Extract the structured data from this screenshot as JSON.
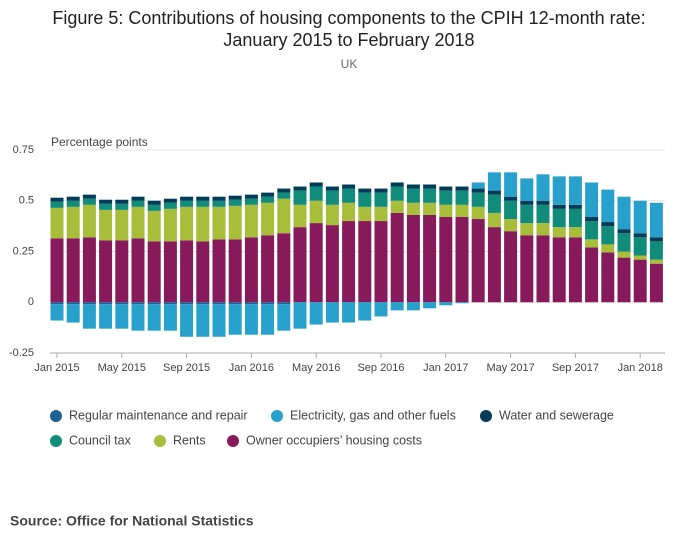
{
  "chart_data": {
    "type": "stacked_bar",
    "title": "Figure 5: Contributions of housing components to the CPIH 12-month rate:",
    "title_line2": "January 2015 to February 2018",
    "subtitle": "UK",
    "y_label": "Percentage points",
    "source": "Source: Office for National Statistics",
    "categories": [
      "Jan 2015",
      null,
      null,
      null,
      "May 2015",
      null,
      null,
      null,
      "Sep 2015",
      null,
      null,
      null,
      "Jan 2016",
      null,
      null,
      null,
      "May 2016",
      null,
      null,
      null,
      "Sep 2016",
      null,
      null,
      null,
      "Jan 2017",
      null,
      null,
      null,
      "May 2017",
      null,
      null,
      null,
      "Sep 2017",
      null,
      null,
      null,
      "Jan 2018",
      null
    ],
    "ylim": [
      -0.25,
      0.75
    ],
    "yticks": [
      -0.25,
      0,
      0.25,
      0.5,
      0.75
    ],
    "grid": true,
    "series": [
      {
        "name": "Owner occupiers’ housing costs",
        "color": "#871a5b",
        "values": [
          0.315,
          0.315,
          0.32,
          0.305,
          0.305,
          0.315,
          0.3,
          0.3,
          0.305,
          0.3,
          0.31,
          0.31,
          0.32,
          0.33,
          0.34,
          0.37,
          0.39,
          0.38,
          0.4,
          0.4,
          0.4,
          0.44,
          0.43,
          0.43,
          0.42,
          0.42,
          0.41,
          0.37,
          0.35,
          0.33,
          0.33,
          0.32,
          0.32,
          0.27,
          0.245,
          0.22,
          0.21,
          0.19
        ]
      },
      {
        "name": "Rents",
        "color": "#a8bd3a",
        "values": [
          0.15,
          0.155,
          0.16,
          0.15,
          0.15,
          0.155,
          0.15,
          0.16,
          0.165,
          0.17,
          0.16,
          0.165,
          0.16,
          0.16,
          0.17,
          0.11,
          0.11,
          0.1,
          0.09,
          0.07,
          0.07,
          0.06,
          0.06,
          0.06,
          0.06,
          0.06,
          0.06,
          0.07,
          0.06,
          0.06,
          0.06,
          0.05,
          0.05,
          0.04,
          0.04,
          0.03,
          0.02,
          0.02
        ]
      },
      {
        "name": "Council tax",
        "color": "#118c7b",
        "values": [
          0.03,
          0.03,
          0.03,
          0.03,
          0.03,
          0.03,
          0.03,
          0.03,
          0.03,
          0.03,
          0.03,
          0.03,
          0.03,
          0.03,
          0.03,
          0.07,
          0.07,
          0.07,
          0.07,
          0.07,
          0.07,
          0.07,
          0.07,
          0.07,
          0.07,
          0.07,
          0.07,
          0.09,
          0.09,
          0.09,
          0.09,
          0.09,
          0.09,
          0.09,
          0.09,
          0.09,
          0.09,
          0.09
        ]
      },
      {
        "name": "Regular maintenance and repair",
        "color": "#206095",
        "values": [
          -0.01,
          -0.01,
          -0.01,
          -0.01,
          -0.01,
          -0.01,
          -0.01,
          -0.01,
          -0.01,
          -0.01,
          -0.01,
          -0.01,
          -0.01,
          -0.01,
          -0.01,
          0,
          0,
          0,
          0,
          0,
          0,
          0,
          0,
          0,
          0,
          0,
          0,
          0,
          0,
          0,
          0,
          0,
          0,
          0,
          0,
          0,
          0,
          0
        ]
      },
      {
        "name": "Water and sewerage",
        "color": "#003c57",
        "values": [
          0.02,
          0.02,
          0.02,
          0.02,
          0.02,
          0.02,
          0.02,
          0.02,
          0.02,
          0.02,
          0.02,
          0.02,
          0.02,
          0.02,
          0.02,
          0.02,
          0.02,
          0.02,
          0.02,
          0.02,
          0.02,
          0.02,
          0.02,
          0.02,
          0.02,
          0.02,
          0.02,
          0.02,
          0.02,
          0.02,
          0.02,
          0.02,
          0.02,
          0.02,
          0.02,
          0.02,
          0.02,
          0.02
        ]
      },
      {
        "name": "Electricity, gas and other fuels",
        "color": "#27a0cc",
        "values": [
          -0.08,
          -0.09,
          -0.12,
          -0.12,
          -0.12,
          -0.13,
          -0.13,
          -0.13,
          -0.16,
          -0.16,
          -0.16,
          -0.15,
          -0.15,
          -0.15,
          -0.13,
          -0.13,
          -0.11,
          -0.1,
          -0.1,
          -0.09,
          -0.07,
          -0.04,
          -0.04,
          -0.03,
          -0.015,
          -0.005,
          0.03,
          0.09,
          0.12,
          0.11,
          0.13,
          0.14,
          0.14,
          0.17,
          0.16,
          0.16,
          0.16,
          0.17
        ]
      }
    ],
    "legend_order": [
      3,
      5,
      4,
      2,
      1,
      0
    ]
  }
}
